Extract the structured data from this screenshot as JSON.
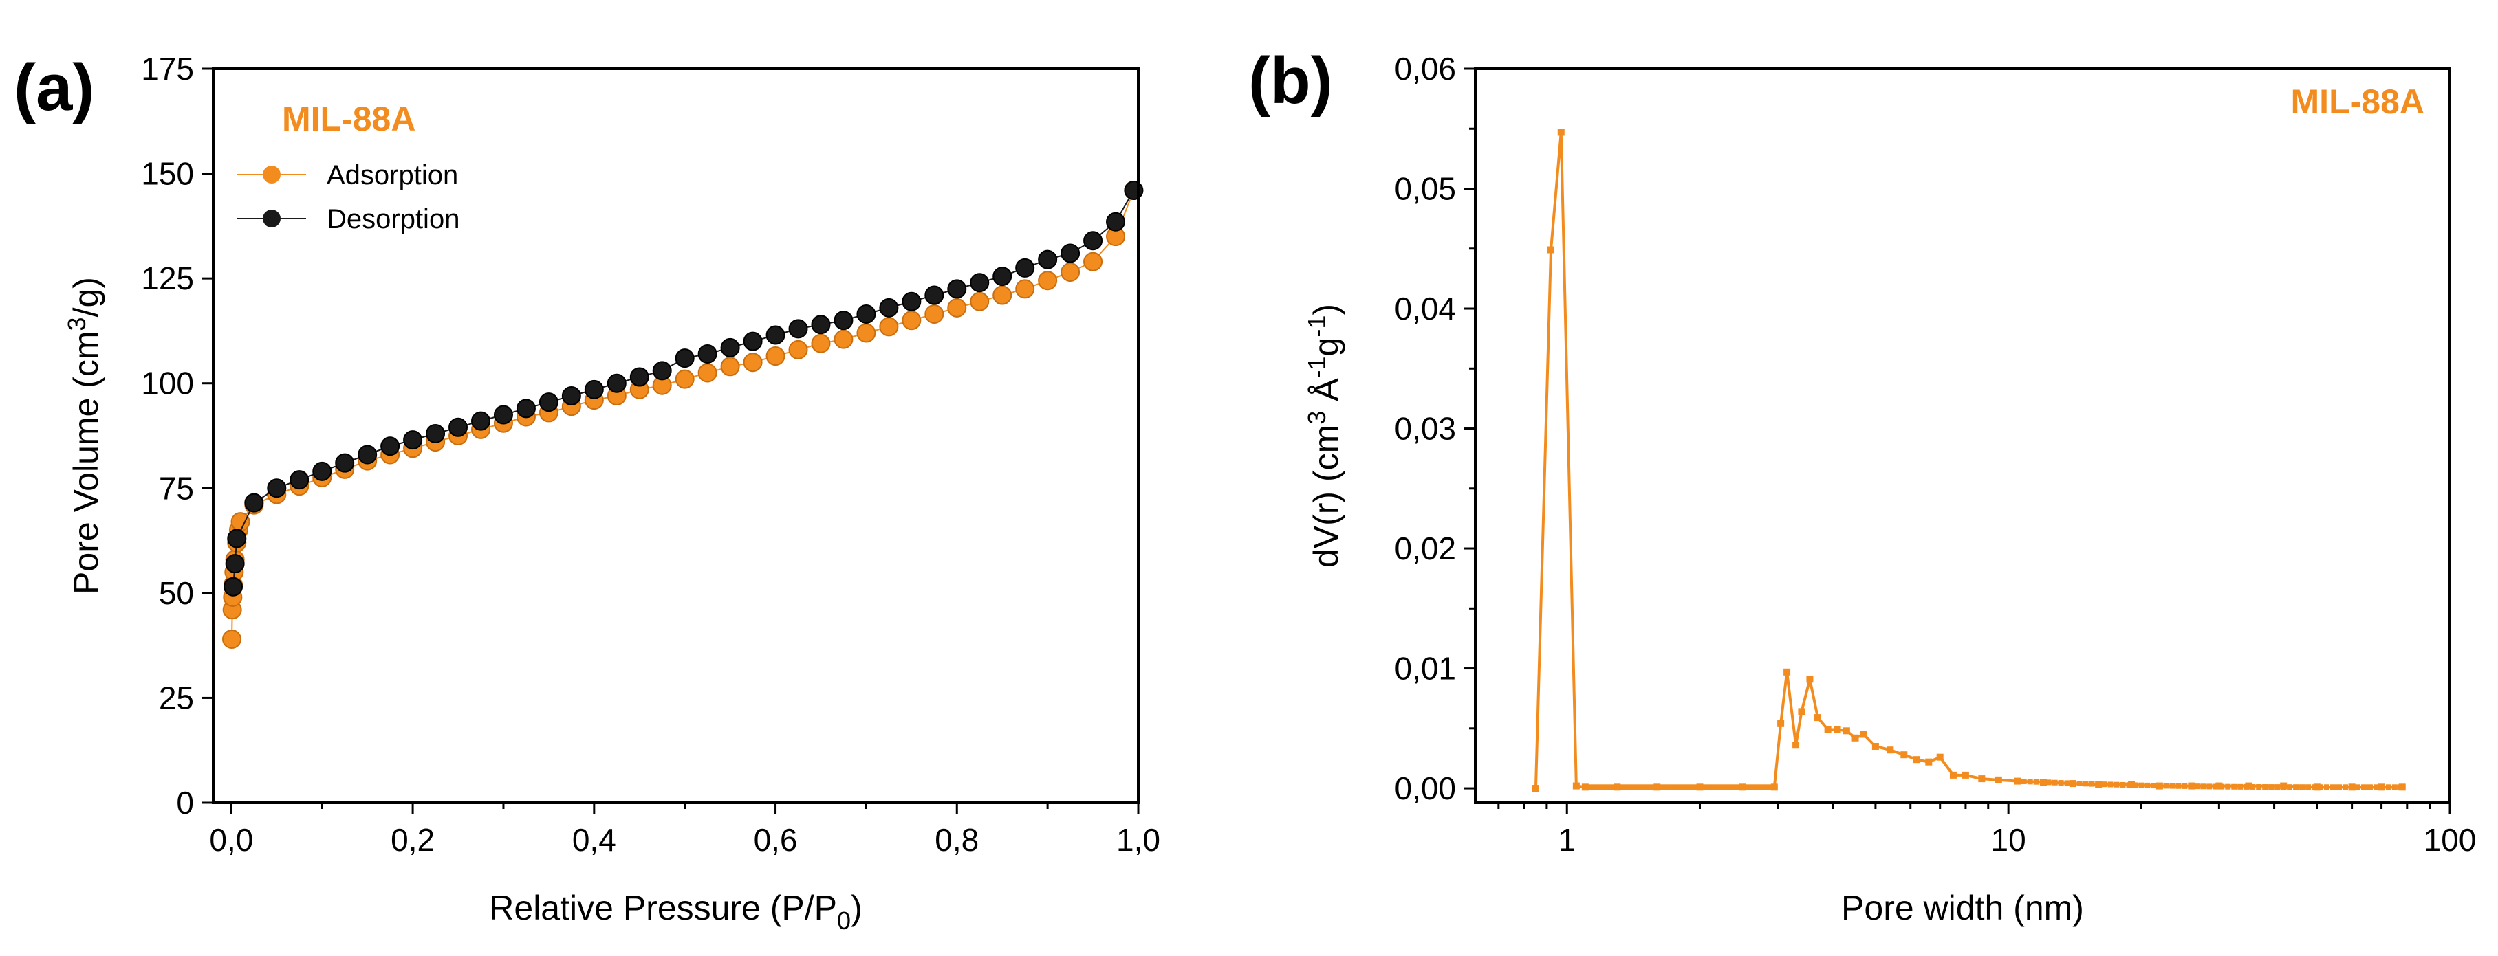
{
  "colors": {
    "adsorption": "#F28C1E",
    "desorption": "#1A1A1A",
    "psd": "#F28C1E",
    "axis": "#000000"
  },
  "chart_data": [
    {
      "panel": "(a)",
      "type": "scatter",
      "title": "MIL-88A",
      "xlabel_main": "Relative Pressure (P/P",
      "xlabel_sub": "0",
      "xlabel_tail": ")",
      "ylabel_main": "Pore Volume (cm",
      "ylabel_sup": "3",
      "ylabel_tail": "/g)",
      "xlim": [
        -0.02,
        1.0
      ],
      "ylim": [
        0,
        175
      ],
      "x_ticks": [
        0.0,
        0.2,
        0.4,
        0.6,
        0.8,
        1.0
      ],
      "x_tick_labels": [
        "0,0",
        "0,2",
        "0,4",
        "0,6",
        "0,8",
        "1,0"
      ],
      "y_ticks": [
        0,
        25,
        50,
        75,
        100,
        125,
        150,
        175
      ],
      "y_tick_labels": [
        "0",
        "25",
        "50",
        "75",
        "100",
        "125",
        "150",
        "175"
      ],
      "legend": [
        "Adsorption",
        "Desorption"
      ],
      "series": [
        {
          "name": "Adsorption",
          "color": "#F28C1E",
          "x": [
            0.0005,
            0.001,
            0.0015,
            0.002,
            0.003,
            0.004,
            0.006,
            0.008,
            0.01,
            0.025,
            0.05,
            0.075,
            0.1,
            0.125,
            0.15,
            0.175,
            0.2,
            0.225,
            0.25,
            0.275,
            0.3,
            0.325,
            0.35,
            0.375,
            0.4,
            0.425,
            0.45,
            0.475,
            0.5,
            0.525,
            0.55,
            0.575,
            0.6,
            0.625,
            0.65,
            0.675,
            0.7,
            0.725,
            0.75,
            0.775,
            0.8,
            0.825,
            0.85,
            0.875,
            0.9,
            0.925,
            0.95,
            0.975,
            0.995
          ],
          "y": [
            39,
            46,
            49,
            52,
            55,
            58,
            62,
            65,
            67,
            71,
            73.5,
            75.5,
            77.5,
            79.5,
            81.5,
            83,
            84.5,
            86,
            87.5,
            89,
            90.5,
            92,
            93,
            94.5,
            96,
            97,
            98.5,
            99.5,
            101,
            102.5,
            104,
            105,
            106.5,
            108,
            109.5,
            110.5,
            112,
            113.5,
            115,
            116.5,
            118,
            119.5,
            121,
            122.5,
            124.5,
            126.5,
            129,
            135,
            146
          ]
        },
        {
          "name": "Desorption",
          "color": "#1A1A1A",
          "x": [
            0.995,
            0.975,
            0.95,
            0.925,
            0.9,
            0.875,
            0.85,
            0.825,
            0.8,
            0.775,
            0.75,
            0.725,
            0.7,
            0.675,
            0.65,
            0.625,
            0.6,
            0.575,
            0.55,
            0.525,
            0.5,
            0.475,
            0.45,
            0.425,
            0.4,
            0.375,
            0.35,
            0.325,
            0.3,
            0.275,
            0.25,
            0.225,
            0.2,
            0.175,
            0.15,
            0.125,
            0.1,
            0.075,
            0.05,
            0.025,
            0.006,
            0.004,
            0.002
          ],
          "y": [
            146,
            138.5,
            134,
            131,
            129.5,
            127.5,
            125.5,
            124,
            122.5,
            121,
            119.5,
            118,
            116.5,
            115,
            114,
            113,
            111.5,
            110,
            108.5,
            107,
            106,
            103,
            101.5,
            100,
            98.5,
            97,
            95.5,
            94,
            92.5,
            91,
            89.5,
            88,
            86.5,
            85,
            83,
            81,
            79,
            77,
            75,
            71.5,
            63,
            57,
            51.5
          ]
        }
      ]
    },
    {
      "panel": "(b)",
      "type": "line",
      "title": "MIL-88A",
      "xlabel": "Pore width (nm)",
      "ylabel_main": "dV(r) (cm",
      "ylabel_sup1": "3",
      "ylabel_mid": " Å",
      "ylabel_sup2": "-1",
      "ylabel_g": "g",
      "ylabel_sup3": "-1",
      "ylabel_tail": ")",
      "x_scale": "log",
      "xlim": [
        0.62,
        100
      ],
      "ylim": [
        -0.0012,
        0.06
      ],
      "x_ticks": [
        1,
        10,
        100
      ],
      "x_tick_labels": [
        "1",
        "10",
        "100"
      ],
      "y_ticks": [
        0.0,
        0.01,
        0.02,
        0.03,
        0.04,
        0.05,
        0.06
      ],
      "y_tick_labels": [
        "0,00",
        "0,01",
        "0,02",
        "0,03",
        "0,04",
        "0,05",
        "0,06"
      ],
      "series": [
        {
          "name": "MIL-88A",
          "color": "#F28C1E",
          "x": [
            0.85,
            0.92,
            0.97,
            1.05,
            1.1,
            1.3,
            1.6,
            2.0,
            2.5,
            2.95,
            3.05,
            3.15,
            3.3,
            3.4,
            3.55,
            3.7,
            3.9,
            4.1,
            4.3,
            4.5,
            4.7,
            5.0,
            5.4,
            5.8,
            6.2,
            6.6,
            7.0,
            7.5,
            8.0,
            8.7,
            9.5,
            10.5,
            12,
            14,
            16,
            19,
            22,
            26,
            30,
            35,
            42,
            50,
            60,
            70,
            78
          ],
          "y": [
            0.0,
            0.0449,
            0.0547,
            0.0002,
            0.0001,
            0.0001,
            0.0001,
            0.0001,
            0.0001,
            0.0001,
            0.0054,
            0.0097,
            0.0036,
            0.0064,
            0.0091,
            0.0059,
            0.0049,
            0.0049,
            0.0048,
            0.0042,
            0.0045,
            0.0035,
            0.0032,
            0.0028,
            0.0024,
            0.0022,
            0.0026,
            0.0011,
            0.0011,
            0.0008,
            0.0007,
            0.0006,
            0.0005,
            0.0004,
            0.0003,
            0.0003,
            0.0002,
            0.0002,
            0.0002,
            0.0002,
            0.0002,
            0.0001,
            0.0001,
            0.0001,
            0.0001
          ]
        }
      ]
    }
  ]
}
